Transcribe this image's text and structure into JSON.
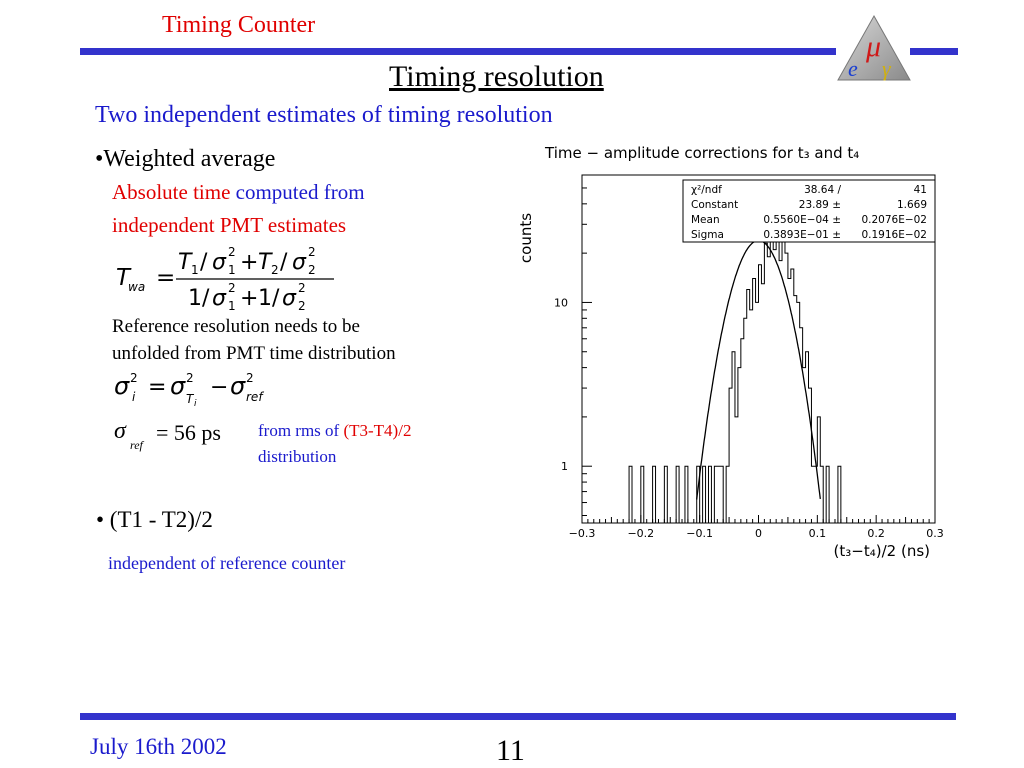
{
  "header": {
    "section": "Timing Counter",
    "title": "Timing resolution",
    "subtitle": "Two independent estimates of timing resolution",
    "logo_text": "μ e γ"
  },
  "left": {
    "bullet1": "•Weighted average",
    "abs_time_red": "Absolute time",
    "abs_time_blue": "computed from",
    "independent_pmt": "independent PMT estimates",
    "formula_lhs": "T",
    "formula_lhs_sub": "wa",
    "ref_text_1": "Reference resolution needs to be",
    "ref_text_2": "unfolded from PMT time distribution",
    "sigma_ref_value": "= 56 ps",
    "from_rms_blue": "from rms of",
    "from_rms_red": "(T3-T4)/2",
    "distribution": "distribution",
    "bullet2": "• (T1 - T2)/2",
    "independent_ref": "independent of reference counter"
  },
  "footer": {
    "date": "July 16th 2002",
    "page": "11"
  },
  "colors": {
    "accent_red": "#e00000",
    "accent_blue": "#1a1acc",
    "rule": "#3333cc"
  },
  "chart_data": {
    "type": "histogram",
    "title": "Time − amplitude corrections for t₃ and t₄",
    "xlabel": "(t₃−t₄)/2 (ns)",
    "ylabel": "counts",
    "xlim": [
      -0.3,
      0.3
    ],
    "ylim_log": [
      0.45,
      60
    ],
    "yscale": "log",
    "x_ticks": [
      "−0.3",
      "−0.2",
      "−0.1",
      "0",
      "0.1",
      "0.2",
      "0.3"
    ],
    "y_ticks": [
      "1",
      "10"
    ],
    "stats": [
      [
        "χ²/ndf",
        "38.64",
        "/",
        "41"
      ],
      [
        "Constant",
        "23.89 ±",
        "",
        "1.669"
      ],
      [
        "Mean",
        "0.5560E−04 ±",
        "",
        "0.2076E−02"
      ],
      [
        "Sigma",
        "0.3893E−01 ±",
        "",
        "0.1916E−02"
      ]
    ],
    "fit": {
      "constant": 23.89,
      "mean": 5.56e-05,
      "sigma": 0.03893
    },
    "bins": {
      "x_start": -0.105,
      "width": 0.005,
      "counts": [
        1,
        0,
        1,
        0,
        1,
        0,
        1,
        1,
        1,
        0,
        1,
        3,
        5,
        2,
        4,
        6,
        8,
        12,
        9,
        14,
        10,
        17,
        13,
        23,
        19,
        26,
        21,
        26,
        18,
        25,
        20,
        14,
        16,
        11,
        10,
        7,
        4,
        5,
        3,
        1,
        1,
        2,
        1,
        0,
        1
      ]
    },
    "extra_bins": [
      [
        -0.22,
        1
      ],
      [
        -0.2,
        1
      ],
      [
        -0.18,
        1
      ],
      [
        -0.16,
        1
      ],
      [
        -0.14,
        1
      ],
      [
        -0.125,
        1
      ],
      [
        0.135,
        1
      ]
    ]
  }
}
